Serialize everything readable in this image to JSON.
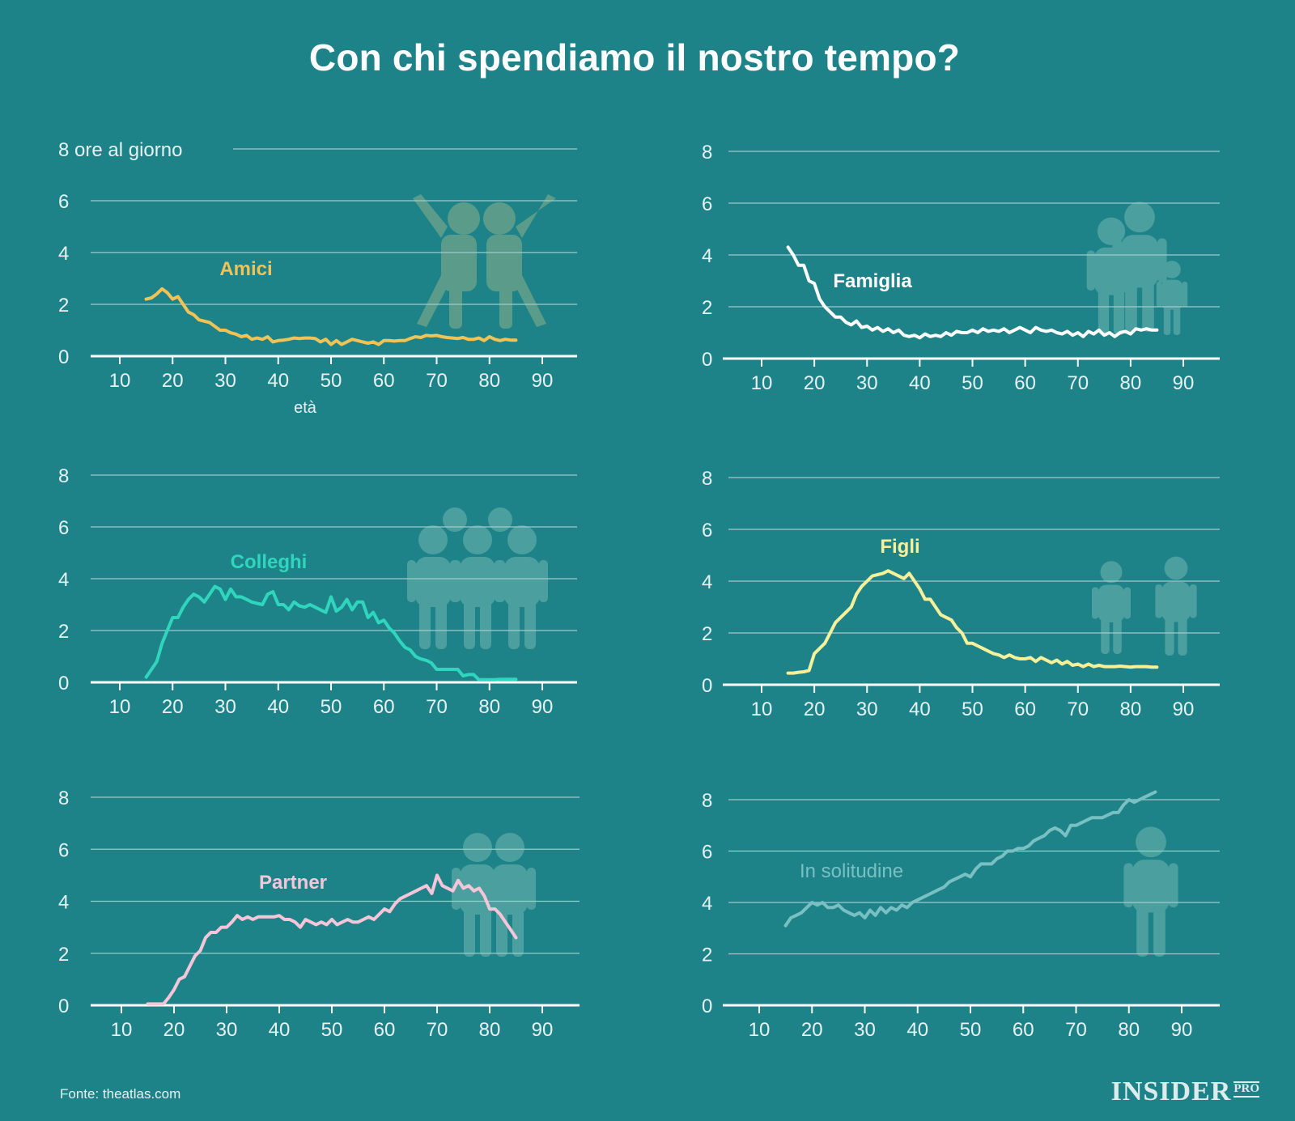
{
  "title": "Con chi spendiamo il nostro tempo?",
  "source": "Fonte: theatlas.com",
  "logo": {
    "main": "INSIDER",
    "suffix": "PRO"
  },
  "colors": {
    "background": "#1e8389",
    "grid": "#9fcaca",
    "axis": "#ffffff",
    "tick_text": "#e6f2f2",
    "icon_fill": "#5aa9a6"
  },
  "chart_data": [
    {
      "type": "line",
      "series": [
        {
          "name": "Amici",
          "color": "#f2c354",
          "x": [
            15,
            16,
            17,
            18,
            19,
            20,
            21,
            22,
            23,
            24,
            25,
            26,
            27,
            28,
            29,
            30,
            31,
            32,
            33,
            34,
            35,
            36,
            37,
            38,
            39,
            40,
            41,
            42,
            43,
            44,
            45,
            46,
            47,
            48,
            49,
            50,
            51,
            52,
            53,
            54,
            55,
            56,
            57,
            58,
            59,
            60,
            61,
            62,
            63,
            64,
            65,
            66,
            67,
            68,
            69,
            70,
            71,
            72,
            73,
            74,
            75,
            76,
            77,
            78,
            79,
            80,
            81,
            82,
            83,
            84,
            85
          ],
          "y": [
            2.2,
            2.25,
            2.4,
            2.6,
            2.45,
            2.2,
            2.3,
            2.0,
            1.7,
            1.6,
            1.4,
            1.35,
            1.3,
            1.15,
            1.0,
            1.0,
            0.9,
            0.85,
            0.75,
            0.8,
            0.65,
            0.7,
            0.65,
            0.75,
            0.55,
            0.6,
            0.62,
            0.65,
            0.7,
            0.68,
            0.7,
            0.7,
            0.68,
            0.55,
            0.65,
            0.45,
            0.6,
            0.45,
            0.55,
            0.65,
            0.6,
            0.55,
            0.5,
            0.55,
            0.45,
            0.6,
            0.6,
            0.58,
            0.6,
            0.6,
            0.68,
            0.75,
            0.72,
            0.8,
            0.78,
            0.8,
            0.75,
            0.72,
            0.7,
            0.68,
            0.72,
            0.65,
            0.65,
            0.7,
            0.6,
            0.75,
            0.65,
            0.6,
            0.65,
            0.62,
            0.62
          ]
        }
      ],
      "x_ticks": [
        10,
        20,
        30,
        40,
        50,
        60,
        70,
        80,
        90
      ],
      "y_ticks": [
        0,
        2,
        4,
        6,
        8
      ],
      "top_tick_label": "8 ore al giorno",
      "xlabel": "età",
      "xlim": [
        5,
        93
      ],
      "ylim": [
        0,
        8
      ],
      "icon": "friends-icon",
      "grid": true
    },
    {
      "type": "line",
      "series": [
        {
          "name": "Famiglia",
          "color": "#ffffff",
          "x": [
            15,
            16,
            17,
            18,
            19,
            20,
            21,
            22,
            23,
            24,
            25,
            26,
            27,
            28,
            29,
            30,
            31,
            32,
            33,
            34,
            35,
            36,
            37,
            38,
            39,
            40,
            41,
            42,
            43,
            44,
            45,
            46,
            47,
            48,
            49,
            50,
            51,
            52,
            53,
            54,
            55,
            56,
            57,
            58,
            59,
            60,
            61,
            62,
            63,
            64,
            65,
            66,
            67,
            68,
            69,
            70,
            71,
            72,
            73,
            74,
            75,
            76,
            77,
            78,
            79,
            80,
            81,
            82,
            83,
            84,
            85
          ],
          "y": [
            4.3,
            4.0,
            3.6,
            3.6,
            3.0,
            2.9,
            2.3,
            2.0,
            1.8,
            1.6,
            1.6,
            1.4,
            1.3,
            1.45,
            1.2,
            1.25,
            1.1,
            1.2,
            1.05,
            1.15,
            1.0,
            1.1,
            0.9,
            0.85,
            0.9,
            0.8,
            0.95,
            0.85,
            0.9,
            0.85,
            1.0,
            0.9,
            1.05,
            1.0,
            1.0,
            1.1,
            1.0,
            1.15,
            1.05,
            1.1,
            1.05,
            1.15,
            1.0,
            1.1,
            1.2,
            1.1,
            1.0,
            1.2,
            1.1,
            1.05,
            1.1,
            1.0,
            0.95,
            1.05,
            0.9,
            1.0,
            0.85,
            1.05,
            0.95,
            1.1,
            0.9,
            1.0,
            0.85,
            1.0,
            1.05,
            0.95,
            1.15,
            1.1,
            1.15,
            1.1,
            1.1
          ]
        }
      ],
      "x_ticks": [
        10,
        20,
        30,
        40,
        50,
        60,
        70,
        80,
        90
      ],
      "y_ticks": [
        0,
        2,
        4,
        6,
        8
      ],
      "top_tick_label": "8",
      "xlabel": "",
      "xlim": [
        5,
        93
      ],
      "ylim": [
        0,
        8
      ],
      "icon": "family-icon",
      "grid": true
    },
    {
      "type": "line",
      "series": [
        {
          "name": "Colleghi",
          "color": "#2fd6bd",
          "x": [
            15,
            16,
            17,
            18,
            19,
            20,
            21,
            22,
            23,
            24,
            25,
            26,
            27,
            28,
            29,
            30,
            31,
            32,
            33,
            34,
            35,
            36,
            37,
            38,
            39,
            40,
            41,
            42,
            43,
            44,
            45,
            46,
            47,
            48,
            49,
            50,
            51,
            52,
            53,
            54,
            55,
            56,
            57,
            58,
            59,
            60,
            61,
            62,
            63,
            64,
            65,
            66,
            67,
            68,
            69,
            70,
            71,
            72,
            73,
            74,
            75,
            76,
            77,
            78,
            79,
            80,
            81,
            82,
            83,
            84,
            85
          ],
          "y": [
            0.2,
            0.5,
            0.8,
            1.5,
            2.0,
            2.5,
            2.5,
            2.9,
            3.2,
            3.4,
            3.3,
            3.1,
            3.4,
            3.7,
            3.6,
            3.2,
            3.6,
            3.3,
            3.3,
            3.2,
            3.1,
            3.05,
            3.0,
            3.4,
            3.5,
            3.0,
            3.0,
            2.8,
            3.1,
            2.95,
            2.9,
            3.0,
            2.9,
            2.8,
            2.7,
            3.3,
            2.75,
            2.9,
            3.2,
            2.8,
            3.1,
            3.1,
            2.5,
            2.7,
            2.3,
            2.4,
            2.1,
            1.9,
            1.6,
            1.35,
            1.25,
            1.0,
            0.9,
            0.85,
            0.75,
            0.5,
            0.5,
            0.5,
            0.5,
            0.5,
            0.25,
            0.3,
            0.3,
            0.1,
            0.1,
            0.1,
            0.1,
            0.12,
            0.12,
            0.12,
            0.12
          ]
        }
      ],
      "x_ticks": [
        10,
        20,
        30,
        40,
        50,
        60,
        70,
        80,
        90
      ],
      "y_ticks": [
        0,
        2,
        4,
        6,
        8
      ],
      "top_tick_label": "8",
      "xlabel": "",
      "xlim": [
        5,
        93
      ],
      "ylim": [
        0,
        8
      ],
      "icon": "coworkers-icon",
      "grid": true
    },
    {
      "type": "line",
      "series": [
        {
          "name": "Figli",
          "color": "#f6f09a",
          "x": [
            15,
            16,
            17,
            18,
            19,
            20,
            21,
            22,
            23,
            24,
            25,
            26,
            27,
            28,
            29,
            30,
            31,
            32,
            33,
            34,
            35,
            36,
            37,
            38,
            39,
            40,
            41,
            42,
            43,
            44,
            45,
            46,
            47,
            48,
            49,
            50,
            51,
            52,
            53,
            54,
            55,
            56,
            57,
            58,
            59,
            60,
            61,
            62,
            63,
            64,
            65,
            66,
            67,
            68,
            69,
            70,
            71,
            72,
            73,
            74,
            75,
            76,
            77,
            78,
            79,
            80,
            81,
            82,
            83,
            84,
            85
          ],
          "y": [
            0.45,
            0.45,
            0.48,
            0.5,
            0.55,
            1.2,
            1.4,
            1.6,
            2.0,
            2.4,
            2.6,
            2.8,
            3.0,
            3.5,
            3.8,
            4.0,
            4.2,
            4.25,
            4.3,
            4.4,
            4.3,
            4.2,
            4.1,
            4.3,
            4.0,
            3.7,
            3.3,
            3.3,
            3.0,
            2.7,
            2.6,
            2.5,
            2.2,
            2.0,
            1.6,
            1.6,
            1.5,
            1.4,
            1.3,
            1.2,
            1.15,
            1.05,
            1.15,
            1.05,
            1.0,
            1.0,
            1.05,
            0.9,
            1.05,
            0.95,
            0.85,
            0.95,
            0.8,
            0.9,
            0.75,
            0.8,
            0.7,
            0.8,
            0.7,
            0.75,
            0.7,
            0.7,
            0.7,
            0.72,
            0.7,
            0.68,
            0.7,
            0.7,
            0.7,
            0.68,
            0.68
          ]
        }
      ],
      "x_ticks": [
        10,
        20,
        30,
        40,
        50,
        60,
        70,
        80,
        90
      ],
      "y_ticks": [
        0,
        2,
        4,
        6,
        8
      ],
      "top_tick_label": "8",
      "xlabel": "",
      "xlim": [
        5,
        93
      ],
      "ylim": [
        0,
        8
      ],
      "icon": "children-icon",
      "grid": true
    },
    {
      "type": "line",
      "series": [
        {
          "name": "Partner",
          "color": "#f6c6d8",
          "x": [
            15,
            16,
            17,
            18,
            19,
            20,
            21,
            22,
            23,
            24,
            25,
            26,
            27,
            28,
            29,
            30,
            31,
            32,
            33,
            34,
            35,
            36,
            37,
            38,
            39,
            40,
            41,
            42,
            43,
            44,
            45,
            46,
            47,
            48,
            49,
            50,
            51,
            52,
            53,
            54,
            55,
            56,
            57,
            58,
            59,
            60,
            61,
            62,
            63,
            64,
            65,
            66,
            67,
            68,
            69,
            70,
            71,
            72,
            73,
            74,
            75,
            76,
            77,
            78,
            79,
            80,
            81,
            82,
            83,
            84,
            85
          ],
          "y": [
            0.05,
            0.05,
            0.05,
            0.05,
            0.3,
            0.6,
            1.0,
            1.1,
            1.5,
            1.9,
            2.1,
            2.6,
            2.8,
            2.8,
            3.0,
            3.0,
            3.2,
            3.45,
            3.3,
            3.4,
            3.3,
            3.4,
            3.4,
            3.4,
            3.4,
            3.45,
            3.3,
            3.3,
            3.2,
            3.0,
            3.3,
            3.2,
            3.1,
            3.2,
            3.1,
            3.3,
            3.1,
            3.2,
            3.3,
            3.2,
            3.2,
            3.3,
            3.4,
            3.3,
            3.5,
            3.7,
            3.6,
            3.9,
            4.1,
            4.2,
            4.3,
            4.4,
            4.5,
            4.6,
            4.3,
            5.0,
            4.6,
            4.5,
            4.4,
            4.8,
            4.5,
            4.6,
            4.4,
            4.5,
            4.2,
            3.7,
            3.7,
            3.5,
            3.2,
            2.9,
            2.6
          ]
        }
      ],
      "x_ticks": [
        10,
        20,
        30,
        40,
        50,
        60,
        70,
        80,
        90
      ],
      "y_ticks": [
        0,
        2,
        4,
        6,
        8
      ],
      "top_tick_label": "8",
      "xlabel": "",
      "xlim": [
        5,
        93
      ],
      "ylim": [
        0,
        8
      ],
      "icon": "couple-icon",
      "grid": true
    },
    {
      "type": "line",
      "series": [
        {
          "name": "In solitudine",
          "color": "#79c0c2",
          "x": [
            15,
            16,
            17,
            18,
            19,
            20,
            21,
            22,
            23,
            24,
            25,
            26,
            27,
            28,
            29,
            30,
            31,
            32,
            33,
            34,
            35,
            36,
            37,
            38,
            39,
            40,
            41,
            42,
            43,
            44,
            45,
            46,
            47,
            48,
            49,
            50,
            51,
            52,
            53,
            54,
            55,
            56,
            57,
            58,
            59,
            60,
            61,
            62,
            63,
            64,
            65,
            66,
            67,
            68,
            69,
            70,
            71,
            72,
            73,
            74,
            75,
            76,
            77,
            78,
            79,
            80,
            81,
            82,
            83,
            84,
            85
          ],
          "y": [
            3.1,
            3.4,
            3.5,
            3.6,
            3.8,
            4.0,
            3.9,
            4.0,
            3.8,
            3.8,
            3.9,
            3.7,
            3.6,
            3.5,
            3.6,
            3.4,
            3.7,
            3.5,
            3.8,
            3.6,
            3.8,
            3.7,
            3.9,
            3.8,
            4.0,
            4.1,
            4.2,
            4.3,
            4.4,
            4.5,
            4.6,
            4.8,
            4.9,
            5.0,
            5.1,
            5.0,
            5.3,
            5.5,
            5.5,
            5.5,
            5.7,
            5.8,
            6.0,
            6.0,
            6.1,
            6.1,
            6.2,
            6.4,
            6.5,
            6.6,
            6.8,
            6.9,
            6.8,
            6.6,
            7.0,
            7.0,
            7.1,
            7.2,
            7.3,
            7.3,
            7.3,
            7.4,
            7.5,
            7.5,
            7.8,
            8.0,
            7.9,
            8.0,
            8.1,
            8.2,
            8.3
          ]
        }
      ],
      "x_ticks": [
        10,
        20,
        30,
        40,
        50,
        60,
        70,
        80,
        90
      ],
      "y_ticks": [
        0,
        2,
        4,
        6,
        8
      ],
      "top_tick_label": "8",
      "xlabel": "",
      "xlim": [
        5,
        93
      ],
      "ylim": [
        0,
        8
      ],
      "icon": "person-alone-icon",
      "grid": true
    }
  ]
}
